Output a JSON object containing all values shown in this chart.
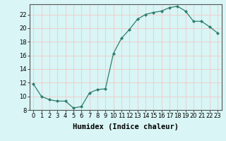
{
  "x": [
    0,
    1,
    2,
    3,
    4,
    5,
    6,
    7,
    8,
    9,
    10,
    11,
    12,
    13,
    14,
    15,
    16,
    17,
    18,
    19,
    20,
    21,
    22,
    23
  ],
  "y": [
    11.8,
    10.0,
    9.5,
    9.3,
    9.3,
    8.3,
    8.5,
    10.5,
    11.0,
    11.1,
    16.3,
    18.5,
    19.8,
    21.3,
    22.0,
    22.3,
    22.5,
    23.0,
    23.2,
    22.5,
    21.0,
    21.0,
    20.2,
    19.3
  ],
  "xlabel": "Humidex (Indice chaleur)",
  "ylim": [
    8,
    23.5
  ],
  "yticks": [
    8,
    10,
    12,
    14,
    16,
    18,
    20,
    22
  ],
  "xticks": [
    0,
    1,
    2,
    3,
    4,
    5,
    6,
    7,
    8,
    9,
    10,
    11,
    12,
    13,
    14,
    15,
    16,
    17,
    18,
    19,
    20,
    21,
    22,
    23
  ],
  "line_color": "#2e7d6e",
  "marker": "D",
  "marker_size": 2.0,
  "bg_color": "#d9f5f5",
  "grid_color": "#f0c8c8",
  "xlabel_fontsize": 7.5,
  "tick_fontsize": 6.0
}
